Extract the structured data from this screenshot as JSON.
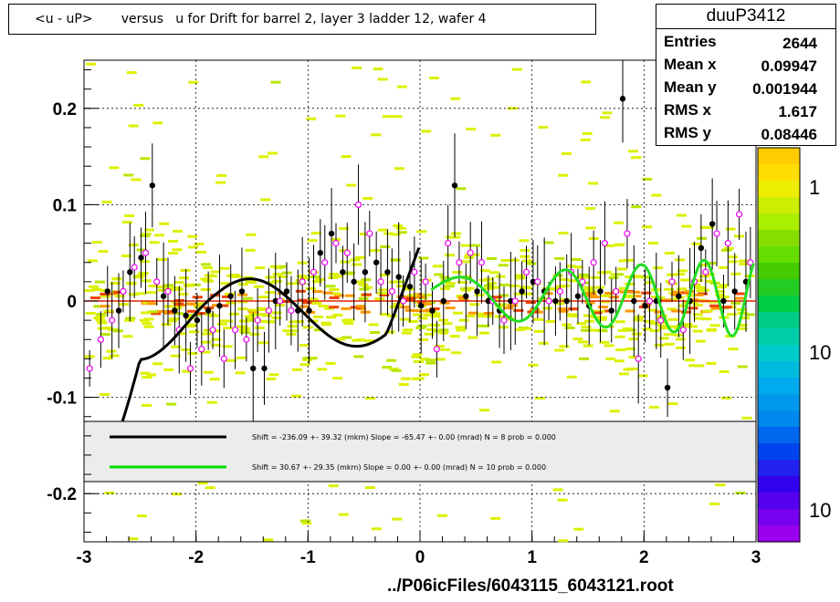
{
  "title": "<u - uP>       versus   u for Drift for barrel 2, layer 3 ladder 12, wafer 4",
  "stats": {
    "name": "duuP3412",
    "rows": [
      {
        "key": "Entries",
        "value": "2644"
      },
      {
        "key": "Mean x",
        "value": "0.09947"
      },
      {
        "key": "Mean y",
        "value": "0.001944"
      },
      {
        "key": "RMS x",
        "value": "1.617"
      },
      {
        "key": "RMS y",
        "value": "0.08446"
      }
    ]
  },
  "footer": "../P06icFiles/6043115_6043121.root",
  "legend": [
    {
      "text": "Shift =  -236.09 +- 39.32 (mkm) Slope =   -65.47 +- 0.00 (mrad)  N = 8 prob = 0.000",
      "color": "#000000"
    },
    {
      "text": "Shift =    30.67 +- 29.35 (mkm) Slope =     0.00 +- 0.00 (mrad)  N = 10 prob = 0.000",
      "color": "#00dd00"
    }
  ],
  "palette_labels": [
    "1",
    "10",
    "10"
  ],
  "chart_data": {
    "type": "scatter",
    "title": "<u - uP>       versus   u for Drift for barrel 2, layer 3 ladder 12, wafer 4",
    "xlabel": "",
    "ylabel": "",
    "xlim": [
      -3,
      3
    ],
    "ylim": [
      -0.25,
      0.25
    ],
    "x_ticks": [
      "-3",
      "-2",
      "-1",
      "0",
      "1",
      "2",
      "3"
    ],
    "y_ticks": [
      "-0.2",
      "-0.1",
      "0",
      "0.1",
      "0.2"
    ],
    "grid": true,
    "colors": {
      "background_bins": "#ddf000",
      "black_points": "#000000",
      "pink_points": "#ee00ee",
      "fit1": "#000000",
      "fit2": "#22dd22"
    },
    "series": [
      {
        "values_x": [
          -2.79,
          -2.69,
          -2.59,
          -2.49,
          -2.39,
          -2.29,
          -2.19,
          -2.09,
          -1.99,
          -1.89,
          -1.79,
          -1.69,
          -1.59,
          -1.49,
          -1.39,
          -1.29,
          -1.19,
          -1.09,
          -0.99,
          -0.89,
          -0.79,
          -0.69,
          -0.59,
          -0.49,
          -0.39,
          -0.29,
          -0.19,
          -0.09,
          0.01,
          0.11,
          0.21,
          0.31,
          0.41,
          0.51,
          0.61,
          0.71,
          0.81,
          0.91,
          1.01,
          1.11,
          1.21,
          1.31,
          1.41,
          1.51,
          1.61,
          1.71,
          1.81,
          1.91,
          2.01,
          2.11,
          2.21,
          2.31,
          2.41,
          2.51,
          2.61,
          2.71,
          2.81,
          2.91
        ],
        "values": [
          0.01,
          -0.01,
          0.03,
          0.045,
          0.12,
          0.005,
          -0.01,
          -0.015,
          -0.02,
          -0.01,
          -0.005,
          0.005,
          0.01,
          -0.07,
          -0.07,
          0.0,
          0.01,
          -0.01,
          -0.01,
          0.05,
          0.07,
          0.03,
          0.02,
          0.03,
          0.04,
          0.03,
          0.025,
          0.015,
          -0.005,
          -0.01,
          0.0,
          0.12,
          0.005,
          0.01,
          0.0,
          -0.01,
          0.0,
          0.01,
          0.02,
          0.01,
          0.0,
          0.0,
          0.005,
          -0.005,
          0.01,
          -0.01,
          0.21,
          0.0,
          -0.005,
          0.0,
          -0.09,
          0.005,
          0.0,
          0.055,
          0.08,
          0.0,
          0.01,
          0.02
        ]
      },
      {
        "values_x": [
          -2.95,
          -2.85,
          -2.75,
          -2.65,
          -2.55,
          -2.45,
          -2.35,
          -2.25,
          -2.15,
          -2.05,
          -1.95,
          -1.85,
          -1.75,
          -1.65,
          -1.55,
          -1.45,
          -1.35,
          -1.25,
          -1.15,
          -1.05,
          -0.95,
          -0.85,
          -0.75,
          -0.65,
          -0.55,
          -0.45,
          -0.35,
          -0.25,
          -0.15,
          -0.05,
          0.05,
          0.15,
          0.25,
          0.35,
          0.45,
          0.55,
          0.65,
          0.75,
          0.85,
          0.95,
          1.05,
          1.15,
          1.25,
          1.35,
          1.45,
          1.55,
          1.65,
          1.75,
          1.85,
          1.95,
          2.05,
          2.15,
          2.25,
          2.35,
          2.45,
          2.55,
          2.65,
          2.75,
          2.85,
          2.95
        ],
        "values": [
          -0.07,
          -0.04,
          -0.02,
          0.01,
          0.035,
          0.05,
          0.02,
          0.01,
          -0.03,
          -0.07,
          -0.05,
          -0.03,
          -0.06,
          -0.03,
          -0.04,
          -0.02,
          -0.01,
          0.0,
          -0.01,
          0.02,
          0.03,
          0.04,
          0.06,
          0.05,
          0.1,
          0.07,
          0.02,
          0.01,
          0.0,
          0.03,
          0.02,
          -0.05,
          0.06,
          0.04,
          0.05,
          0.04,
          0.0,
          -0.02,
          0.0,
          0.03,
          0.02,
          0.0,
          0.01,
          0.03,
          0.02,
          0.04,
          0.06,
          0.01,
          0.07,
          -0.06,
          0.0,
          -0.02,
          0.02,
          -0.03,
          0.02,
          0.03,
          0.07,
          0.06,
          0.09,
          0.04
        ]
      },
      {
        "fit": "fit1",
        "N": 8
      },
      {
        "fit": "fit2",
        "N": 10
      }
    ]
  }
}
